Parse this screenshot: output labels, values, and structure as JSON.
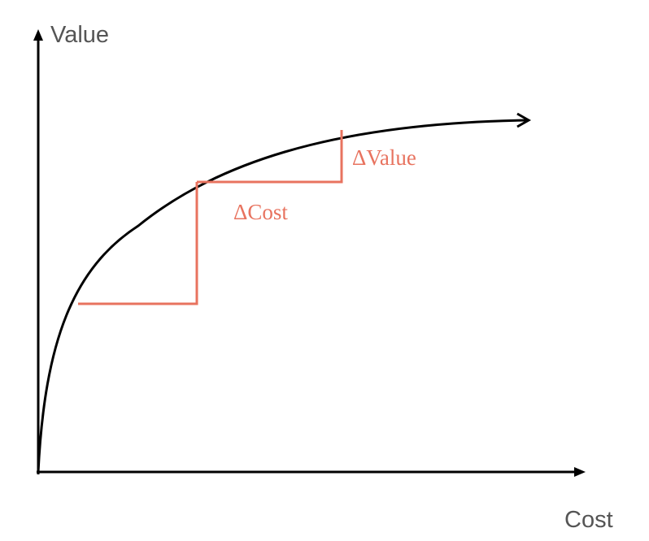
{
  "diagram": {
    "y_axis_label": "Value",
    "x_axis_label": "Cost",
    "delta_cost_label": "ΔCost",
    "delta_value_label": "ΔValue"
  },
  "colors": {
    "axis": "#000000",
    "curve": "#000000",
    "annotation": "#e8735f",
    "axis_label": "#555555"
  }
}
